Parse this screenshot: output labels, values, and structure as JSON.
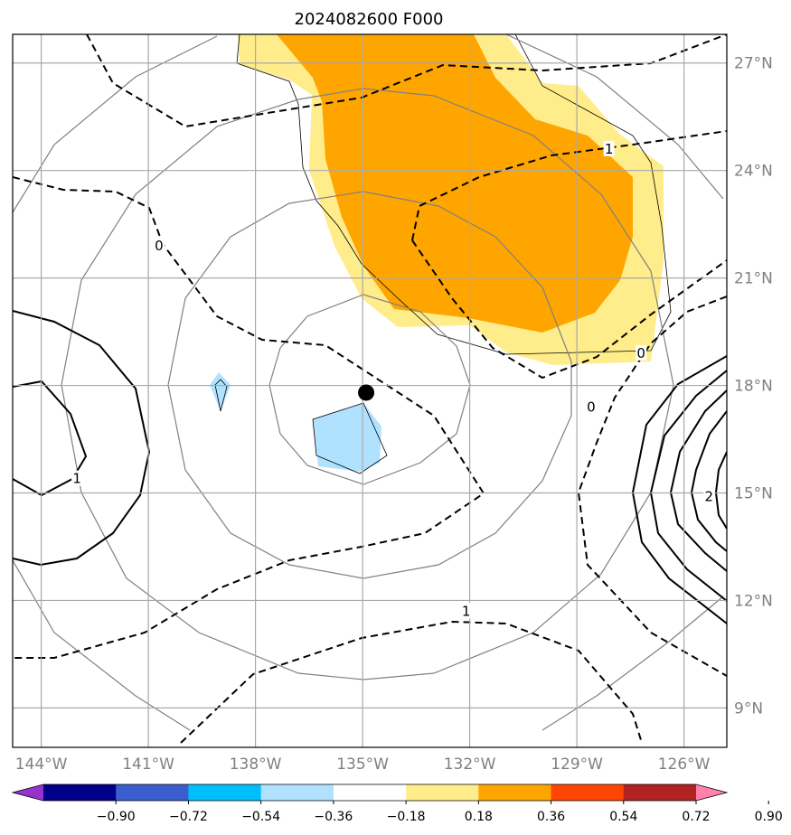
{
  "chart_data": {
    "type": "heatmap",
    "title": "2024082600 F000",
    "grid": true,
    "lon_ticks": [
      {
        "value": -144,
        "label": "144°W"
      },
      {
        "value": -141,
        "label": "141°W"
      },
      {
        "value": -138,
        "label": "138°W"
      },
      {
        "value": -135,
        "label": "135°W"
      },
      {
        "value": -132,
        "label": "132°W"
      },
      {
        "value": -129,
        "label": "129°W"
      },
      {
        "value": -126,
        "label": "126°W"
      }
    ],
    "lat_ticks": [
      {
        "value": 9,
        "label": "9°N"
      },
      {
        "value": 12,
        "label": "12°N"
      },
      {
        "value": 15,
        "label": "15°N"
      },
      {
        "value": 18,
        "label": "18°N"
      },
      {
        "value": 21,
        "label": "21°N"
      },
      {
        "value": 24,
        "label": "24°N"
      },
      {
        "value": 27,
        "label": "27°N"
      }
    ],
    "xlim": [
      -144.8,
      -124.8
    ],
    "ylim": [
      7.9,
      27.8
    ],
    "colorbar": {
      "boundaries": [
        -0.9,
        -0.72,
        -0.54,
        -0.36,
        -0.18,
        0.18,
        0.36,
        0.54,
        0.72,
        0.9
      ],
      "labels": [
        "−0.90",
        "−0.72",
        "−0.54",
        "−0.36",
        "−0.18",
        "0.18",
        "0.36",
        "0.54",
        "0.72",
        "0.90"
      ],
      "colors": [
        "#9932cc",
        "#00008b",
        "#3a5fcd",
        "#00bfff",
        "#b0e2ff",
        "#ffffff",
        "#ffec8b",
        "#ffa500",
        "#ff4500",
        "#b22222",
        "#ff82ab"
      ]
    },
    "center_marker": {
      "lon": -134.9,
      "lat": 17.8
    },
    "contour_labels": [
      {
        "text": "1",
        "lon": -128.1,
        "lat": 24.6
      },
      {
        "text": "0",
        "lon": -140.7,
        "lat": 21.9
      },
      {
        "text": "0",
        "lon": -127.2,
        "lat": 18.9
      },
      {
        "text": "0",
        "lon": -128.6,
        "lat": 17.4
      },
      {
        "text": "1",
        "lon": -143.0,
        "lat": 15.4
      },
      {
        "text": "2",
        "lon": -125.3,
        "lat": 14.9
      },
      {
        "text": "1",
        "lon": -132.1,
        "lat": 11.7
      }
    ]
  }
}
